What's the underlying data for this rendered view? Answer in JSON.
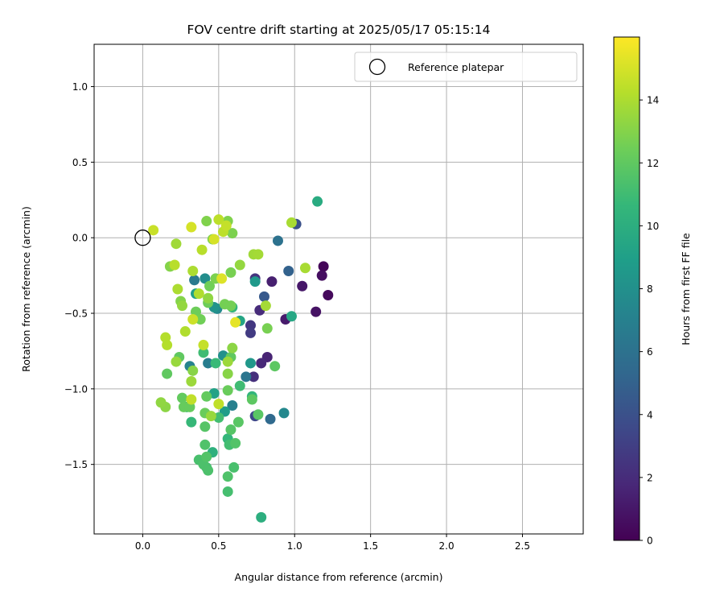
{
  "chart_data": {
    "type": "scatter",
    "title": "FOV centre drift starting at 2025/05/17 05:15:14",
    "xlabel": "Angular distance from reference (arcmin)",
    "ylabel": "Rotation from reference (arcmin)",
    "xlim": [
      -0.32,
      2.9
    ],
    "ylim": [
      -1.96,
      1.28
    ],
    "xticks": [
      0.0,
      0.5,
      1.0,
      1.5,
      2.0,
      2.5
    ],
    "xtick_labels": [
      "0.0",
      "0.5",
      "1.0",
      "1.5",
      "2.0",
      "2.5"
    ],
    "yticks": [
      1.0,
      0.5,
      0.0,
      -0.5,
      -1.0,
      -1.5
    ],
    "ytick_labels": [
      "1.0",
      "0.5",
      "0.0",
      "−0.5",
      "−1.0",
      "−1.5"
    ],
    "grid": true,
    "legend": {
      "position": "top-right",
      "label": "Reference platepar"
    },
    "reference_point": {
      "x": 0.0,
      "y": 0.0
    },
    "colorbar": {
      "label": "Hours from first FF file",
      "colormap": "viridis",
      "range": [
        0,
        16
      ],
      "ticks": [
        0,
        2,
        4,
        6,
        8,
        10,
        12,
        14
      ],
      "tick_labels": [
        "0",
        "2",
        "4",
        "6",
        "8",
        "10",
        "12",
        "14"
      ]
    },
    "colormap_stops": [
      "#440154",
      "#482878",
      "#3e4989",
      "#31688e",
      "#26828e",
      "#1f9e89",
      "#35b779",
      "#6ece58",
      "#b5de2b",
      "#fde725"
    ],
    "points": [
      {
        "x": 1.19,
        "y": -0.19,
        "h": 0.2
      },
      {
        "x": 1.22,
        "y": -0.38,
        "h": 0.4
      },
      {
        "x": 1.18,
        "y": -0.25,
        "h": 0.6
      },
      {
        "x": 1.14,
        "y": -0.49,
        "h": 0.8
      },
      {
        "x": 1.05,
        "y": -0.32,
        "h": 1.0
      },
      {
        "x": 0.94,
        "y": -0.54,
        "h": 1.2
      },
      {
        "x": 0.85,
        "y": -0.29,
        "h": 1.4
      },
      {
        "x": 0.82,
        "y": -0.79,
        "h": 1.6
      },
      {
        "x": 0.78,
        "y": -0.83,
        "h": 1.8
      },
      {
        "x": 0.77,
        "y": -0.48,
        "h": 2.0
      },
      {
        "x": 0.73,
        "y": -0.92,
        "h": 2.2
      },
      {
        "x": 0.74,
        "y": -0.27,
        "h": 2.4
      },
      {
        "x": 0.71,
        "y": -0.58,
        "h": 2.6
      },
      {
        "x": 0.71,
        "y": -0.63,
        "h": 2.8
      },
      {
        "x": 0.74,
        "y": -1.18,
        "h": 3.5
      },
      {
        "x": 1.01,
        "y": 0.09,
        "h": 4.0
      },
      {
        "x": 0.8,
        "y": -0.39,
        "h": 4.5
      },
      {
        "x": 0.96,
        "y": -0.22,
        "h": 5.0
      },
      {
        "x": 0.84,
        "y": -1.2,
        "h": 5.5
      },
      {
        "x": 0.89,
        "y": -0.02,
        "h": 6.0
      },
      {
        "x": 0.68,
        "y": -0.92,
        "h": 6.2
      },
      {
        "x": 0.34,
        "y": -0.28,
        "h": 6.5
      },
      {
        "x": 0.43,
        "y": -0.83,
        "h": 6.8
      },
      {
        "x": 0.59,
        "y": -1.11,
        "h": 7.0
      },
      {
        "x": 0.31,
        "y": -0.85,
        "h": 7.2
      },
      {
        "x": 0.93,
        "y": -1.16,
        "h": 7.5
      },
      {
        "x": 0.49,
        "y": -0.47,
        "h": 7.6
      },
      {
        "x": 0.41,
        "y": -0.27,
        "h": 7.8
      },
      {
        "x": 0.53,
        "y": -0.78,
        "h": 8.0
      },
      {
        "x": 0.47,
        "y": -0.46,
        "h": 8.2
      },
      {
        "x": 0.71,
        "y": -0.83,
        "h": 8.5
      },
      {
        "x": 0.74,
        "y": -0.29,
        "h": 8.6
      },
      {
        "x": 0.54,
        "y": -1.15,
        "h": 8.8
      },
      {
        "x": 0.35,
        "y": -0.37,
        "h": 9.0
      },
      {
        "x": 0.47,
        "y": -1.03,
        "h": 9.2
      },
      {
        "x": 0.64,
        "y": -0.55,
        "h": 9.4
      },
      {
        "x": 0.98,
        "y": -0.52,
        "h": 9.5
      },
      {
        "x": 1.15,
        "y": 0.24,
        "h": 9.8
      },
      {
        "x": 0.78,
        "y": -1.85,
        "h": 10.0
      },
      {
        "x": 0.46,
        "y": -1.42,
        "h": 10.2
      },
      {
        "x": 0.59,
        "y": -0.46,
        "h": 10.4
      },
      {
        "x": 0.72,
        "y": -1.05,
        "h": 10.5
      },
      {
        "x": 0.56,
        "y": -1.33,
        "h": 10.6
      },
      {
        "x": 0.32,
        "y": -1.22,
        "h": 10.7
      },
      {
        "x": 0.48,
        "y": -0.83,
        "h": 10.8
      },
      {
        "x": 0.29,
        "y": -1.12,
        "h": 10.9
      },
      {
        "x": 0.64,
        "y": -0.98,
        "h": 11.0
      },
      {
        "x": 0.4,
        "y": -0.76,
        "h": 11.0
      },
      {
        "x": 0.5,
        "y": -1.19,
        "h": 11.1
      },
      {
        "x": 0.57,
        "y": -1.37,
        "h": 11.1
      },
      {
        "x": 0.42,
        "y": -1.52,
        "h": 11.2
      },
      {
        "x": 0.56,
        "y": -1.68,
        "h": 11.2
      },
      {
        "x": 0.37,
        "y": -1.47,
        "h": 11.3
      },
      {
        "x": 0.6,
        "y": -1.52,
        "h": 11.3
      },
      {
        "x": 0.4,
        "y": -1.5,
        "h": 11.4
      },
      {
        "x": 0.43,
        "y": -1.54,
        "h": 11.4
      },
      {
        "x": 0.56,
        "y": -1.58,
        "h": 11.5
      },
      {
        "x": 0.41,
        "y": -1.37,
        "h": 11.5
      },
      {
        "x": 0.61,
        "y": -1.36,
        "h": 11.6
      },
      {
        "x": 0.42,
        "y": -1.45,
        "h": 11.6
      },
      {
        "x": 0.58,
        "y": -1.27,
        "h": 11.7
      },
      {
        "x": 0.41,
        "y": -1.25,
        "h": 11.7
      },
      {
        "x": 0.63,
        "y": -1.22,
        "h": 11.8
      },
      {
        "x": 0.76,
        "y": -1.17,
        "h": 11.8
      },
      {
        "x": 0.72,
        "y": -1.07,
        "h": 11.9
      },
      {
        "x": 0.87,
        "y": -0.85,
        "h": 11.9
      },
      {
        "x": 0.58,
        "y": -0.79,
        "h": 12.0
      },
      {
        "x": 0.16,
        "y": -0.9,
        "h": 12.0
      },
      {
        "x": 0.24,
        "y": -0.79,
        "h": 12.0
      },
      {
        "x": 0.26,
        "y": -1.06,
        "h": 12.1
      },
      {
        "x": 0.42,
        "y": -1.05,
        "h": 12.1
      },
      {
        "x": 0.27,
        "y": -1.12,
        "h": 12.2
      },
      {
        "x": 0.31,
        "y": -1.12,
        "h": 12.2
      },
      {
        "x": 0.41,
        "y": -1.16,
        "h": 12.3
      },
      {
        "x": 0.56,
        "y": -1.01,
        "h": 12.3
      },
      {
        "x": 0.43,
        "y": -0.43,
        "h": 12.4
      },
      {
        "x": 0.35,
        "y": -0.49,
        "h": 12.4
      },
      {
        "x": 0.38,
        "y": -0.54,
        "h": 12.5
      },
      {
        "x": 0.44,
        "y": -0.32,
        "h": 12.5
      },
      {
        "x": 0.58,
        "y": -0.45,
        "h": 12.6
      },
      {
        "x": 0.54,
        "y": -0.44,
        "h": 12.6
      },
      {
        "x": 0.82,
        "y": -0.6,
        "h": 12.7
      },
      {
        "x": 0.58,
        "y": -0.23,
        "h": 12.7
      },
      {
        "x": 0.48,
        "y": -0.27,
        "h": 12.8
      },
      {
        "x": 0.59,
        "y": 0.03,
        "h": 12.8
      },
      {
        "x": 0.56,
        "y": 0.11,
        "h": 12.9
      },
      {
        "x": 0.42,
        "y": 0.11,
        "h": 12.9
      },
      {
        "x": 0.46,
        "y": -0.01,
        "h": 13.0
      },
      {
        "x": 0.18,
        "y": -0.19,
        "h": 13.0
      },
      {
        "x": 0.25,
        "y": -0.42,
        "h": 13.0
      },
      {
        "x": 0.56,
        "y": -0.9,
        "h": 13.1
      },
      {
        "x": 0.33,
        "y": -0.88,
        "h": 13.1
      },
      {
        "x": 0.59,
        "y": -0.73,
        "h": 13.2
      },
      {
        "x": 0.15,
        "y": -1.12,
        "h": 13.2
      },
      {
        "x": 0.12,
        "y": -1.09,
        "h": 13.3
      },
      {
        "x": 0.43,
        "y": -0.4,
        "h": 13.3
      },
      {
        "x": 0.64,
        "y": -0.18,
        "h": 13.4
      },
      {
        "x": 0.26,
        "y": -0.45,
        "h": 13.4
      },
      {
        "x": 0.22,
        "y": -0.82,
        "h": 13.5
      },
      {
        "x": 0.45,
        "y": -1.18,
        "h": 13.5
      },
      {
        "x": 0.56,
        "y": -0.82,
        "h": 13.6
      },
      {
        "x": 0.32,
        "y": -0.95,
        "h": 13.6
      },
      {
        "x": 0.22,
        "y": -0.04,
        "h": 13.7
      },
      {
        "x": 0.73,
        "y": -0.11,
        "h": 13.7
      },
      {
        "x": 0.76,
        "y": -0.11,
        "h": 13.8
      },
      {
        "x": 0.81,
        "y": -0.45,
        "h": 13.8
      },
      {
        "x": 0.98,
        "y": 0.1,
        "h": 13.9
      },
      {
        "x": 1.07,
        "y": -0.2,
        "h": 13.9
      },
      {
        "x": 0.23,
        "y": -0.34,
        "h": 14.0
      },
      {
        "x": 0.33,
        "y": -0.22,
        "h": 14.0
      },
      {
        "x": 0.37,
        "y": -0.37,
        "h": 14.1
      },
      {
        "x": 0.28,
        "y": -0.62,
        "h": 14.1
      },
      {
        "x": 0.16,
        "y": -0.71,
        "h": 14.2
      },
      {
        "x": 0.15,
        "y": -0.66,
        "h": 14.2
      },
      {
        "x": 0.21,
        "y": -0.18,
        "h": 14.3
      },
      {
        "x": 0.39,
        "y": -0.08,
        "h": 14.3
      },
      {
        "x": 0.5,
        "y": 0.12,
        "h": 14.4
      },
      {
        "x": 0.53,
        "y": 0.04,
        "h": 14.4
      },
      {
        "x": 0.5,
        "y": -1.1,
        "h": 14.5
      },
      {
        "x": 0.32,
        "y": -1.07,
        "h": 14.5
      },
      {
        "x": 0.4,
        "y": -0.71,
        "h": 14.6
      },
      {
        "x": 0.55,
        "y": 0.08,
        "h": 14.6
      },
      {
        "x": 0.07,
        "y": 0.05,
        "h": 14.7
      },
      {
        "x": 0.33,
        "y": -0.54,
        "h": 14.8
      },
      {
        "x": 0.32,
        "y": 0.07,
        "h": 15.0
      },
      {
        "x": 0.47,
        "y": -0.01,
        "h": 15.0
      },
      {
        "x": 0.52,
        "y": -0.27,
        "h": 15.2
      },
      {
        "x": 0.61,
        "y": -0.56,
        "h": 15.4
      }
    ]
  }
}
